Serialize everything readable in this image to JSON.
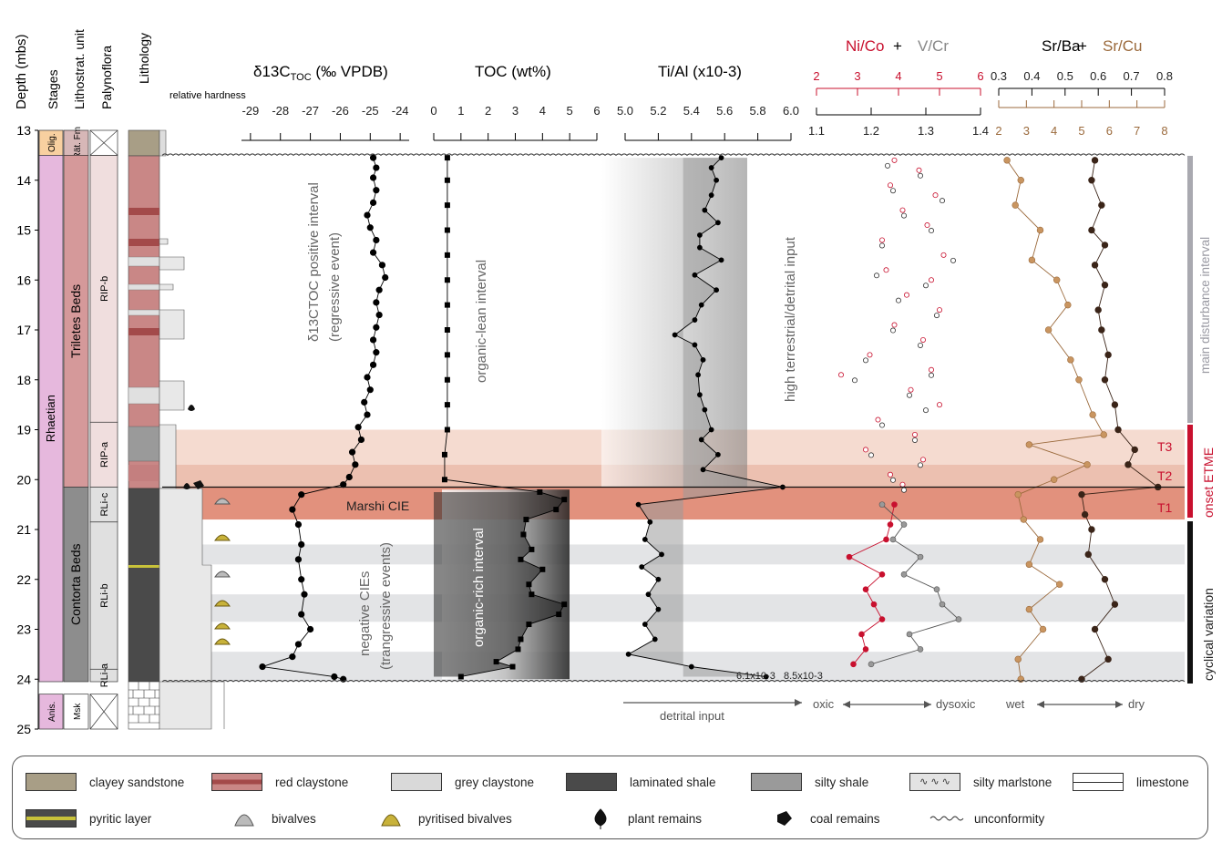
{
  "headers": {
    "depth": "Depth (mbs)",
    "stages": "Stages",
    "unit": "Lithostrat. unit",
    "palyno": "Palynoflora",
    "lithology": "Lithology",
    "hardness": "relative hardness",
    "d13c_main": "δ13C",
    "d13c_sub": "TOC",
    "d13c_unit": " (‰ VPDB)",
    "toc": "TOC (wt%)",
    "tial": "Ti/Al (x10-3)",
    "nico": "Ni/Co",
    "plus": "+",
    "vcr": "V/Cr",
    "srba": "Sr/Ba",
    "srcu": "Sr/Cu"
  },
  "colors": {
    "red": "#c8102e",
    "grey": "#888888",
    "brown": "#9b6a3c",
    "dark": "#3a2418",
    "rhaetian": "#e6b8dd",
    "triletes": "#d5999a",
    "contorta": "#8d8d8d",
    "olig": "#f8d0a0",
    "t_band": "#e08a74"
  },
  "depth_axis": {
    "min": 13,
    "max": 25,
    "ticks": [
      "13",
      "14",
      "15",
      "16",
      "17",
      "18",
      "19",
      "20",
      "21",
      "22",
      "23",
      "24",
      "25"
    ]
  },
  "stratigraphy": {
    "stages": [
      {
        "label": "Olig.",
        "top": 13,
        "bottom": 13.5
      },
      {
        "label": "Rhaetian",
        "top": 13.5,
        "bottom": 24.05
      },
      {
        "label": "Anis.",
        "top": 24.3,
        "bottom": 25
      }
    ],
    "units": [
      {
        "label": "Rät. Fm",
        "top": 13,
        "bottom": 13.5
      },
      {
        "label": "Triletes Beds",
        "top": 13.5,
        "bottom": 20.15
      },
      {
        "label": "Contorta Beds",
        "top": 20.15,
        "bottom": 24.05
      },
      {
        "label": "Msk",
        "top": 24.3,
        "bottom": 25
      }
    ],
    "palynoflora": [
      {
        "label": "RIP-b",
        "top": 13.5,
        "bottom": 18.85
      },
      {
        "label": "RIP-a",
        "top": 18.85,
        "bottom": 20.15
      },
      {
        "label": "RLi-c",
        "top": 20.15,
        "bottom": 20.85
      },
      {
        "label": "RLi-b",
        "top": 20.85,
        "bottom": 23.8
      },
      {
        "label": "RLi-a",
        "top": 23.8,
        "bottom": 24.05
      }
    ]
  },
  "annotations": {
    "d13c_interval": "δ13CTOC positive interval",
    "d13c_interval_sub": "(regressive event)",
    "organic_lean": "organic-lean interval",
    "organic_rich": "organic-rich interval",
    "high_terrestrial": "high terrestrial/detrital input",
    "marshi": "Marshi CIE",
    "negative_cies": "negative CIEs",
    "negative_cies_sub": "(trangressive events)",
    "tial_hi1": "6.1x10-3",
    "tial_hi2": "8.5x10-3",
    "detrital_input": "detrital input",
    "oxic": "oxic",
    "dysoxic": "dysoxic",
    "wet": "wet",
    "dry": "dry",
    "t1": "T1",
    "t2": "T2",
    "t3": "T3",
    "main_disturbance": "main disturbance interval",
    "onset_etme": "onset ETME",
    "cyclical": "cyclical variation"
  },
  "chart_data": {
    "type": "line",
    "y_axis": "Depth (mbs)",
    "ylim": [
      13,
      25
    ],
    "bands": [
      {
        "label": "T3",
        "top": 19.0,
        "bottom": 19.7
      },
      {
        "label": "T2",
        "top": 19.7,
        "bottom": 20.15
      },
      {
        "label": "T1",
        "top": 20.15,
        "bottom": 20.8
      }
    ],
    "axes": {
      "d13c": {
        "ticks": [
          "-29",
          "-28",
          "-27",
          "-26",
          "-25",
          "-24"
        ],
        "xlim": [
          -29.3,
          -23.7
        ]
      },
      "toc": {
        "ticks": [
          "0",
          "1",
          "2",
          "3",
          "4",
          "5",
          "6"
        ],
        "xlim": [
          0,
          6
        ]
      },
      "tial": {
        "ticks": [
          "5.0",
          "5.2",
          "5.4",
          "5.6",
          "5.8",
          "6.0"
        ],
        "xlim": [
          5.0,
          6.0
        ]
      },
      "nico": {
        "ticks": [
          "2",
          "3",
          "4",
          "5",
          "6"
        ],
        "xlim": [
          2,
          6
        ]
      },
      "vcr": {
        "ticks": [
          "1.1",
          "1.2",
          "1.3",
          "1.4"
        ],
        "xlim": [
          1.1,
          1.4
        ]
      },
      "srba": {
        "ticks": [
          "0.3",
          "0.4",
          "0.5",
          "0.6",
          "0.7",
          "0.8"
        ],
        "xlim": [
          0.3,
          0.8
        ]
      },
      "srcu": {
        "ticks": [
          "2",
          "3",
          "4",
          "5",
          "6",
          "7",
          "8"
        ],
        "xlim": [
          2,
          8
        ]
      }
    },
    "series": [
      {
        "name": "δ13C TOC",
        "axis": "d13c",
        "points": [
          [
            -24.9,
            13.55
          ],
          [
            -24.8,
            13.75
          ],
          [
            -24.9,
            13.95
          ],
          [
            -24.8,
            14.2
          ],
          [
            -24.9,
            14.45
          ],
          [
            -25.1,
            14.7
          ],
          [
            -25.0,
            14.95
          ],
          [
            -24.8,
            15.2
          ],
          [
            -24.9,
            15.45
          ],
          [
            -24.6,
            15.7
          ],
          [
            -24.5,
            15.95
          ],
          [
            -24.7,
            16.2
          ],
          [
            -24.8,
            16.45
          ],
          [
            -24.7,
            16.7
          ],
          [
            -24.8,
            16.95
          ],
          [
            -24.9,
            17.2
          ],
          [
            -24.8,
            17.45
          ],
          [
            -24.9,
            17.7
          ],
          [
            -25.1,
            17.95
          ],
          [
            -25.0,
            18.2
          ],
          [
            -25.2,
            18.45
          ],
          [
            -25.1,
            18.7
          ],
          [
            -25.4,
            18.95
          ],
          [
            -25.3,
            19.2
          ],
          [
            -25.6,
            19.45
          ],
          [
            -25.5,
            19.7
          ],
          [
            -25.7,
            19.95
          ],
          [
            -25.9,
            20.1
          ],
          [
            -27.3,
            20.3
          ],
          [
            -27.6,
            20.6
          ],
          [
            -27.4,
            20.9
          ],
          [
            -27.3,
            21.3
          ],
          [
            -27.4,
            21.6
          ],
          [
            -27.3,
            22.0
          ],
          [
            -27.2,
            22.3
          ],
          [
            -27.3,
            22.7
          ],
          [
            -27.0,
            23.0
          ],
          [
            -27.4,
            23.3
          ],
          [
            -27.6,
            23.55
          ],
          [
            -28.6,
            23.75
          ],
          [
            -26.2,
            23.95
          ],
          [
            -25.9,
            24.0
          ]
        ]
      },
      {
        "name": "TOC",
        "axis": "toc",
        "points": [
          [
            0.5,
            13.55
          ],
          [
            0.5,
            14.0
          ],
          [
            0.5,
            14.5
          ],
          [
            0.5,
            15.0
          ],
          [
            0.5,
            15.5
          ],
          [
            0.5,
            16.0
          ],
          [
            0.5,
            16.5
          ],
          [
            0.5,
            17.0
          ],
          [
            0.5,
            17.5
          ],
          [
            0.5,
            18.0
          ],
          [
            0.5,
            18.5
          ],
          [
            0.5,
            19.0
          ],
          [
            0.4,
            19.5
          ],
          [
            0.4,
            20.0
          ],
          [
            3.9,
            20.25
          ],
          [
            4.8,
            20.4
          ],
          [
            4.5,
            20.6
          ],
          [
            3.4,
            20.8
          ],
          [
            3.3,
            21.1
          ],
          [
            3.6,
            21.4
          ],
          [
            3.2,
            21.6
          ],
          [
            4.0,
            21.8
          ],
          [
            3.5,
            22.1
          ],
          [
            3.6,
            22.3
          ],
          [
            4.8,
            22.5
          ],
          [
            4.6,
            22.7
          ],
          [
            3.5,
            22.9
          ],
          [
            3.2,
            23.2
          ],
          [
            3.1,
            23.4
          ],
          [
            2.3,
            23.65
          ],
          [
            2.9,
            23.75
          ],
          [
            1.0,
            23.95
          ]
        ]
      },
      {
        "name": "Ti/Al",
        "axis": "tial",
        "points": [
          [
            5.58,
            13.55
          ],
          [
            5.52,
            13.75
          ],
          [
            5.55,
            14.0
          ],
          [
            5.52,
            14.3
          ],
          [
            5.48,
            14.6
          ],
          [
            5.56,
            14.85
          ],
          [
            5.45,
            15.1
          ],
          [
            5.45,
            15.35
          ],
          [
            5.58,
            15.6
          ],
          [
            5.42,
            15.9
          ],
          [
            5.55,
            16.2
          ],
          [
            5.46,
            16.5
          ],
          [
            5.42,
            16.8
          ],
          [
            5.3,
            17.1
          ],
          [
            5.42,
            17.3
          ],
          [
            5.47,
            17.6
          ],
          [
            5.44,
            17.9
          ],
          [
            5.45,
            18.3
          ],
          [
            5.48,
            18.6
          ],
          [
            5.52,
            19.0
          ],
          [
            5.46,
            19.2
          ],
          [
            5.56,
            19.5
          ],
          [
            5.47,
            19.8
          ],
          [
            5.95,
            20.15
          ],
          [
            5.08,
            20.5
          ],
          [
            5.15,
            20.85
          ],
          [
            5.12,
            21.2
          ],
          [
            5.22,
            21.5
          ],
          [
            5.1,
            21.75
          ],
          [
            5.2,
            22.0
          ],
          [
            5.14,
            22.3
          ],
          [
            5.2,
            22.6
          ],
          [
            5.12,
            22.9
          ],
          [
            5.18,
            23.2
          ],
          [
            5.02,
            23.5
          ],
          [
            5.4,
            23.75
          ],
          [
            5.85,
            23.95
          ]
        ]
      },
      {
        "name": "Ni/Co",
        "axis": "nico",
        "points": [
          [
            3.9,
            20.5
          ],
          [
            3.8,
            20.9
          ],
          [
            3.7,
            21.2
          ],
          [
            2.8,
            21.55
          ],
          [
            3.6,
            21.9
          ],
          [
            3.2,
            22.2
          ],
          [
            3.4,
            22.5
          ],
          [
            3.6,
            22.8
          ],
          [
            3.1,
            23.1
          ],
          [
            3.2,
            23.4
          ],
          [
            2.9,
            23.7
          ]
        ]
      },
      {
        "name": "V/Cr",
        "axis": "vcr",
        "points": [
          [
            1.22,
            20.5
          ],
          [
            1.26,
            20.9
          ],
          [
            1.24,
            21.2
          ],
          [
            1.29,
            21.55
          ],
          [
            1.26,
            21.9
          ],
          [
            1.32,
            22.2
          ],
          [
            1.33,
            22.5
          ],
          [
            1.36,
            22.8
          ],
          [
            1.27,
            23.1
          ],
          [
            1.29,
            23.4
          ],
          [
            1.2,
            23.7
          ]
        ]
      },
      {
        "name": "Sr/Ba",
        "axis": "srba",
        "points": [
          [
            0.59,
            13.6
          ],
          [
            0.58,
            14.0
          ],
          [
            0.61,
            14.5
          ],
          [
            0.58,
            15.0
          ],
          [
            0.62,
            15.3
          ],
          [
            0.59,
            15.7
          ],
          [
            0.62,
            16.1
          ],
          [
            0.6,
            16.6
          ],
          [
            0.61,
            17.0
          ],
          [
            0.63,
            17.5
          ],
          [
            0.62,
            18.0
          ],
          [
            0.65,
            18.5
          ],
          [
            0.66,
            19.0
          ],
          [
            0.71,
            19.4
          ],
          [
            0.69,
            19.7
          ],
          [
            0.78,
            20.15
          ],
          [
            0.55,
            20.3
          ],
          [
            0.56,
            20.7
          ],
          [
            0.58,
            21.0
          ],
          [
            0.57,
            21.5
          ],
          [
            0.62,
            22.0
          ],
          [
            0.65,
            22.5
          ],
          [
            0.59,
            23.0
          ],
          [
            0.63,
            23.6
          ],
          [
            0.55,
            24.0
          ]
        ]
      },
      {
        "name": "Sr/Cu",
        "axis": "srcu",
        "points": [
          [
            2.3,
            13.6
          ],
          [
            2.8,
            14.0
          ],
          [
            2.6,
            14.5
          ],
          [
            3.5,
            15.0
          ],
          [
            3.2,
            15.6
          ],
          [
            4.1,
            16.0
          ],
          [
            4.5,
            16.5
          ],
          [
            3.8,
            17.0
          ],
          [
            4.6,
            17.6
          ],
          [
            4.9,
            18.0
          ],
          [
            5.4,
            18.7
          ],
          [
            5.8,
            19.1
          ],
          [
            3.1,
            19.3
          ],
          [
            5.2,
            19.7
          ],
          [
            4.0,
            20.0
          ],
          [
            2.7,
            20.3
          ],
          [
            2.9,
            20.8
          ],
          [
            3.5,
            21.2
          ],
          [
            3.1,
            21.7
          ],
          [
            4.2,
            22.1
          ],
          [
            3.1,
            22.6
          ],
          [
            3.6,
            23.0
          ],
          [
            2.7,
            23.6
          ],
          [
            2.8,
            24.0
          ]
        ]
      }
    ]
  },
  "legend": [
    {
      "label": "clayey sandstone",
      "icon": "clayey-sandstone-swatch"
    },
    {
      "label": "red claystone",
      "icon": "red-claystone-swatch"
    },
    {
      "label": "grey claystone",
      "icon": "grey-claystone-swatch"
    },
    {
      "label": "laminated shale",
      "icon": "laminated-shale-swatch"
    },
    {
      "label": "silty shale",
      "icon": "silty-shale-swatch"
    },
    {
      "label": "silty marlstone",
      "icon": "silty-marlstone-swatch"
    },
    {
      "label": "limestone",
      "icon": "limestone-swatch"
    },
    {
      "label": "pyritic layer",
      "icon": "pyritic-layer-swatch"
    },
    {
      "label": "bivalves",
      "icon": "bivalve-icon"
    },
    {
      "label": "pyritised bivalves",
      "icon": "pyritised-bivalve-icon"
    },
    {
      "label": "plant remains",
      "icon": "plant-remains-icon"
    },
    {
      "label": "coal remains",
      "icon": "coal-remains-icon"
    },
    {
      "label": "unconformity",
      "icon": "unconformity-icon"
    }
  ]
}
